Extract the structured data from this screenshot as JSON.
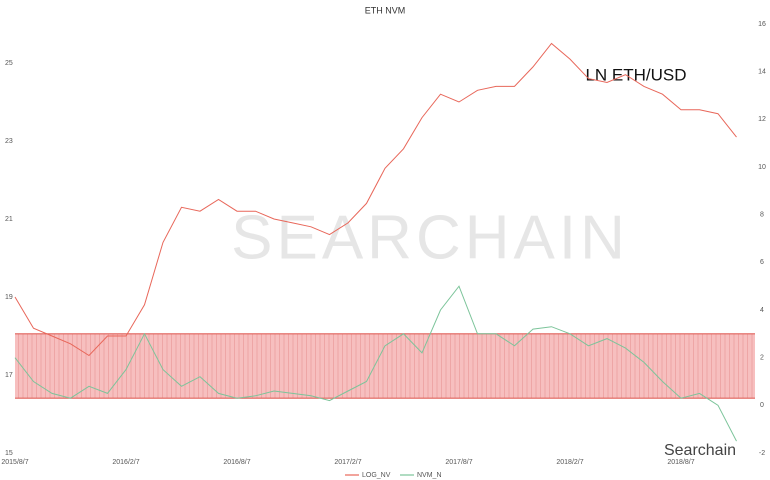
{
  "chart_data": {
    "type": "line",
    "title": "ETH NVM",
    "annotation": "LN ETH/USD",
    "watermark": "SEARCHAIN",
    "logo": "Searchain",
    "x": [
      "2015/8/7",
      "2015/9/7",
      "2015/10/7",
      "2015/11/7",
      "2015/12/7",
      "2016/1/7",
      "2016/2/7",
      "2016/3/7",
      "2016/4/7",
      "2016/5/7",
      "2016/6/7",
      "2016/7/7",
      "2016/8/7",
      "2016/9/7",
      "2016/10/7",
      "2016/11/7",
      "2016/12/7",
      "2017/1/7",
      "2017/2/7",
      "2017/3/7",
      "2017/4/7",
      "2017/5/7",
      "2017/6/7",
      "2017/7/7",
      "2017/8/7",
      "2017/9/7",
      "2017/10/7",
      "2017/11/7",
      "2017/12/7",
      "2018/1/7",
      "2018/2/7",
      "2018/3/7",
      "2018/4/7",
      "2018/5/7",
      "2018/6/7",
      "2018/7/7",
      "2018/8/7",
      "2018/9/7",
      "2018/10/7",
      "2018/11/7"
    ],
    "xticks": [
      "2015/8/7",
      "2016/2/7",
      "2016/8/7",
      "2017/2/7",
      "2017/8/7",
      "2018/2/7",
      "2018/8/7"
    ],
    "series": [
      {
        "name": "LOG_NV",
        "color": "#e8675a",
        "values": [
          19.0,
          18.2,
          18.0,
          17.8,
          17.5,
          18.0,
          18.0,
          18.8,
          20.4,
          21.3,
          21.2,
          21.5,
          21.2,
          21.2,
          21.0,
          20.9,
          20.8,
          20.6,
          20.9,
          21.4,
          22.3,
          22.8,
          23.6,
          24.2,
          24.0,
          24.3,
          24.4,
          24.4,
          24.9,
          25.5,
          25.1,
          24.6,
          24.5,
          24.7,
          24.4,
          24.2,
          23.8,
          23.8,
          23.7,
          23.1
        ]
      },
      {
        "name": "NVM_N",
        "color": "#7cc49a",
        "axis": "y2",
        "values": [
          2.0,
          1.0,
          0.5,
          0.3,
          0.8,
          0.5,
          1.5,
          3.0,
          1.5,
          0.8,
          1.2,
          0.5,
          0.3,
          0.4,
          0.6,
          0.5,
          0.4,
          0.2,
          0.6,
          1.0,
          2.5,
          3.0,
          2.2,
          4.0,
          5.0,
          3.0,
          3.0,
          2.5,
          3.2,
          3.3,
          3.0,
          2.5,
          2.8,
          2.4,
          1.8,
          1.0,
          0.3,
          0.5,
          0.0,
          -1.5
        ]
      }
    ],
    "band": {
      "axis": "y2",
      "range": [
        0.3,
        3
      ],
      "color": "#f4a9a9"
    },
    "ylim": [
      15,
      26
    ],
    "yticks": [
      15,
      17,
      19,
      21,
      23,
      25
    ],
    "y2lim": [
      -2,
      16
    ],
    "y2ticks": [
      -2,
      0,
      2,
      4,
      6,
      8,
      10,
      12,
      14,
      16
    ]
  }
}
